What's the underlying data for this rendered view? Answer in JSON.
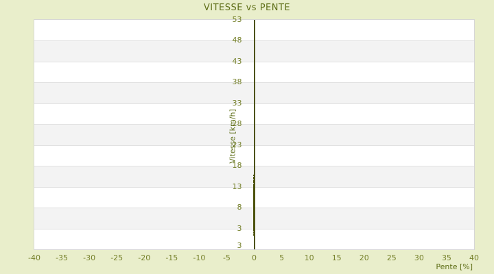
{
  "window": {
    "title": "VITESSE vs PENTE"
  },
  "colors": {
    "background": "#e9eecb",
    "title_text": "#5e6e17",
    "tick_text": "#75802a",
    "axis_and_points": "#4d530e",
    "band_light": "#ffffff",
    "band_dark": "#f3f3f3",
    "gridline": "#e1e1e1",
    "plot_border": "#d6d6d6"
  },
  "chart_data": {
    "type": "scatter",
    "title": "VITESSE vs PENTE",
    "xlabel": "Pente [%]",
    "ylabel": "Vitesse [km/h]",
    "xlim": [
      -40,
      40
    ],
    "ylim": [
      -2,
      53
    ],
    "x_ticks": [
      -40,
      -35,
      -30,
      -25,
      -20,
      -15,
      -10,
      -5,
      0,
      5,
      10,
      15,
      20,
      25,
      30,
      35,
      40
    ],
    "y_ticks": [
      53,
      48,
      43,
      38,
      33,
      28,
      23,
      18,
      13,
      8,
      3
    ],
    "y_axis_bottom_edge_label": "3",
    "grid": "horizontal-gridlines-with-alternating-bands",
    "legend": "none",
    "y_axis_position": "drawn vertically at x=0",
    "series": [
      {
        "name": "Vitesse",
        "x": 0,
        "dense_y_range": [
          2.3,
          13.7
        ],
        "outlier_y": [
          15.7,
          15.3,
          14.9,
          14.5,
          14.1,
          1.9,
          1.4
        ]
      }
    ]
  }
}
